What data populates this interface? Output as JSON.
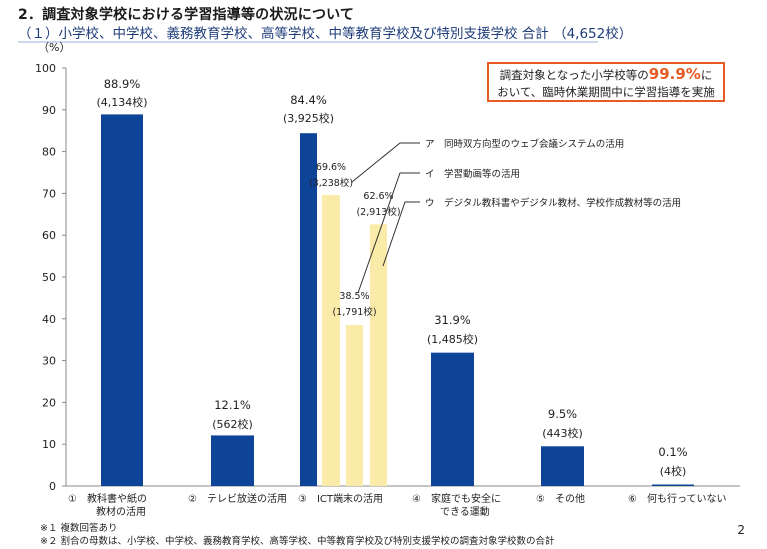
{
  "page": {
    "title": "2．調査対象学校における学習指導等の状況について",
    "subtitle": "（１）小学校、中学校、義務教育学校、高等学校、中等教育学校及び特別支援学校 合計 （4,652校）",
    "callout": {
      "line1_pre": "調査対象となった小学校等の",
      "line1_big": "99.9%",
      "line1_post": "に",
      "line2": "おいて、臨時休業期間中に学習指導を実施"
    },
    "footnotes": [
      "※１ 複数回答あり",
      "※２ 割合の母数は、小学校、中学校、義務教育学校、高等学校、中等教育学校及び特別支援学校の調査対象学校数の合計"
    ],
    "page_number": "2"
  },
  "chart_data": {
    "type": "bar",
    "ylabel": "（%）",
    "ylim": [
      0,
      100
    ],
    "yticks": [
      0,
      10,
      20,
      30,
      40,
      50,
      60,
      70,
      80,
      90,
      100
    ],
    "grid": false,
    "colors": {
      "main": "#0e4497",
      "sub": "#fbeba8"
    },
    "categories": [
      [
        "①　教科書や紙の",
        "教材の活用"
      ],
      [
        "②　テレビ放送の活用"
      ],
      [
        "③　ICT端末の活用"
      ],
      [
        "④　家庭でも安全に",
        "できる運動"
      ],
      [
        "⑤　その他"
      ],
      [
        "⑥　何も行っていない"
      ]
    ],
    "bars": [
      {
        "value": 88.9,
        "label": "88.9%",
        "count": "(4,134校)",
        "kind": "main"
      },
      {
        "value": 12.1,
        "label": "12.1%",
        "count": "(562校)",
        "kind": "main"
      },
      {
        "value": 84.4,
        "label": "84.4%",
        "count": "(3,925校)",
        "kind": "main"
      },
      {
        "value": 69.6,
        "label": "69.6%",
        "count": "(3,238校)",
        "kind": "sub",
        "sub_id": "ア"
      },
      {
        "value": 38.5,
        "label": "38.5%",
        "count": "(1,791校)",
        "kind": "sub",
        "sub_id": "イ"
      },
      {
        "value": 62.6,
        "label": "62.6%",
        "count": "(2,913校)",
        "kind": "sub",
        "sub_id": "ウ"
      },
      {
        "value": 31.9,
        "label": "31.9%",
        "count": "(1,485校)",
        "kind": "main"
      },
      {
        "value": 9.5,
        "label": "9.5%",
        "count": "(443校)",
        "kind": "main"
      },
      {
        "value": 0.1,
        "label": "0.1%",
        "count": "(4校)",
        "kind": "main"
      }
    ],
    "annotations": [
      "ア　同時双方向型のウェブ会議システムの活用",
      "イ　学習動画等の活用",
      "ウ　デジタル教科書やデジタル教材、学校作成教材等の活用"
    ]
  }
}
